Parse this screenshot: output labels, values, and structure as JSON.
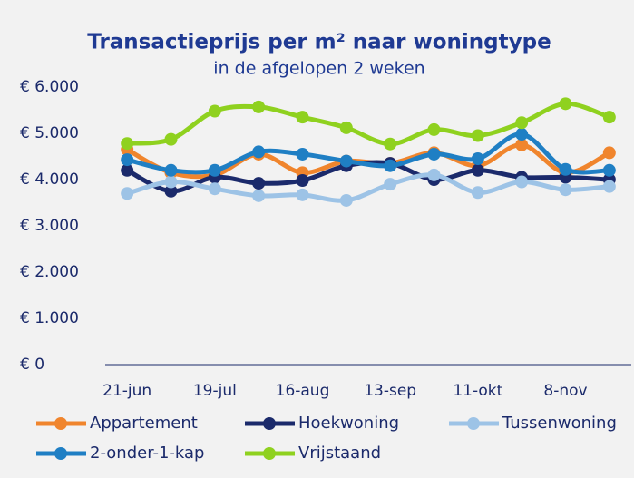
{
  "chart_data": {
    "type": "line",
    "title": "Transactieprijs per m² naar woningtype",
    "subtitle": "in de afgelopen 2 weken",
    "categories": [
      "21-jun",
      null,
      "19-jul",
      null,
      "16-aug",
      null,
      "13-sep",
      null,
      "11-okt",
      null,
      "8-nov",
      null
    ],
    "series": [
      {
        "name": "Appartement",
        "color": "#f0852d",
        "values": [
          4650,
          4150,
          4100,
          4550,
          4150,
          4400,
          4350,
          4580,
          4300,
          4750,
          4150,
          4580
        ]
      },
      {
        "name": "Hoekwoning",
        "color": "#1b2a6b",
        "values": [
          4200,
          3750,
          4050,
          3920,
          3980,
          4300,
          4350,
          4000,
          4200,
          4050,
          4050,
          4000
        ]
      },
      {
        "name": "Tussenwoning",
        "color": "#9dc3e6",
        "values": [
          3700,
          3950,
          3800,
          3650,
          3670,
          3550,
          3900,
          4100,
          3720,
          3950,
          3780,
          3850
        ]
      },
      {
        "name": "2-onder-1-kap",
        "color": "#1f7fc4",
        "values": [
          4430,
          4200,
          4200,
          4600,
          4550,
          4400,
          4300,
          4550,
          4450,
          4980,
          4220,
          4200
        ]
      },
      {
        "name": "Vrijstaand",
        "color": "#8fd11f",
        "values": [
          4780,
          4870,
          5480,
          5570,
          5350,
          5120,
          4770,
          5080,
          4950,
          5230,
          5640,
          5350
        ]
      }
    ],
    "ylim": [
      0,
      6000
    ],
    "yticks": [
      {
        "value": 0,
        "label": "€ 0"
      },
      {
        "value": 1000,
        "label": "€ 1.000"
      },
      {
        "value": 2000,
        "label": "€ 2.000"
      },
      {
        "value": 3000,
        "label": "€ 3.000"
      },
      {
        "value": 4000,
        "label": "€ 4.000"
      },
      {
        "value": 5000,
        "label": "€ 5.000"
      },
      {
        "value": 6000,
        "label": "€ 6.000"
      }
    ],
    "grid": false
  }
}
